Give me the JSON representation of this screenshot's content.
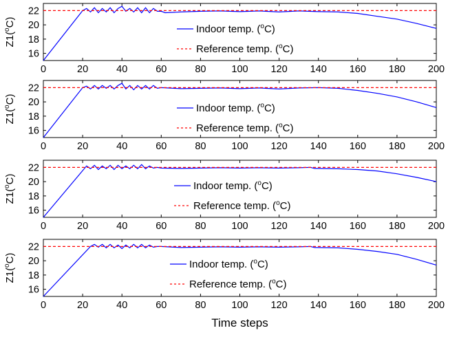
{
  "colors": {
    "indoor": "#0000ff",
    "reference": "#ff0000",
    "axis": "#000000"
  },
  "chart_data": [
    {
      "type": "line",
      "ylabel_base": "Z1(",
      "ylabel_sup": "o",
      "ylabel_unit": "C)",
      "xlim": [
        0,
        200
      ],
      "ylim": [
        15,
        23
      ],
      "x_ticks": [
        0,
        20,
        40,
        60,
        80,
        100,
        120,
        140,
        160,
        180,
        200
      ],
      "y_ticks": [
        16,
        18,
        20,
        22
      ],
      "legend_placement": "center",
      "reference_value": 22,
      "series": [
        {
          "name": "Indoor temp. (oC)",
          "name_base": "Indoor temp. (",
          "name_sup": "o",
          "name_unit": "C)",
          "style": "solid",
          "x": [
            0,
            20,
            22,
            24,
            26,
            28,
            30,
            32,
            34,
            36,
            38,
            40,
            42,
            44,
            46,
            48,
            50,
            52,
            54,
            56,
            58,
            60,
            62,
            70,
            80,
            90,
            100,
            110,
            120,
            130,
            135,
            140,
            150,
            160,
            170,
            180,
            190,
            200
          ],
          "y": [
            15.0,
            22.0,
            22.3,
            21.8,
            22.4,
            21.7,
            22.3,
            21.8,
            22.4,
            21.7,
            22.3,
            22.6,
            21.9,
            22.3,
            21.8,
            22.4,
            21.7,
            22.4,
            21.7,
            22.3,
            21.9,
            21.9,
            21.7,
            21.8,
            21.9,
            21.95,
            21.85,
            21.95,
            21.8,
            21.95,
            21.9,
            21.85,
            21.8,
            21.6,
            21.2,
            20.8,
            20.2,
            19.5
          ]
        },
        {
          "name": "Reference temp. (oC)",
          "name_base": "Reference temp. (",
          "name_sup": "o",
          "name_unit": "C)",
          "style": "dashed",
          "x": [
            0,
            200
          ],
          "y": [
            22,
            22
          ]
        }
      ]
    },
    {
      "type": "line",
      "ylabel_base": "Z1(",
      "ylabel_sup": "o",
      "ylabel_unit": "C)",
      "xlim": [
        0,
        200
      ],
      "ylim": [
        15,
        23
      ],
      "x_ticks": [
        0,
        20,
        40,
        60,
        80,
        100,
        120,
        140,
        160,
        180,
        200
      ],
      "y_ticks": [
        16,
        18,
        20,
        22
      ],
      "legend_placement": "center",
      "reference_value": 22,
      "series": [
        {
          "name": "Indoor temp. (oC)",
          "name_base": "Indoor temp. (",
          "name_sup": "o",
          "name_unit": "C)",
          "style": "solid",
          "x": [
            0,
            20,
            22,
            24,
            26,
            28,
            30,
            32,
            34,
            36,
            38,
            40,
            42,
            44,
            46,
            48,
            50,
            52,
            54,
            56,
            58,
            60,
            70,
            80,
            90,
            100,
            110,
            120,
            130,
            140,
            150,
            160,
            170,
            180,
            190,
            200
          ],
          "y": [
            15.0,
            22.0,
            22.2,
            21.8,
            22.3,
            21.8,
            22.3,
            21.9,
            22.3,
            21.8,
            22.3,
            22.6,
            21.8,
            22.3,
            21.7,
            22.3,
            21.8,
            22.3,
            21.8,
            22.3,
            21.9,
            22.0,
            21.85,
            21.9,
            21.95,
            21.85,
            21.95,
            21.8,
            21.95,
            22.0,
            21.9,
            21.6,
            21.2,
            20.7,
            20.0,
            19.2
          ]
        },
        {
          "name": "Reference temp. (oC)",
          "name_base": "Reference temp. (",
          "name_sup": "o",
          "name_unit": "C)",
          "style": "dashed",
          "x": [
            0,
            200
          ],
          "y": [
            22,
            22
          ]
        }
      ]
    },
    {
      "type": "line",
      "ylabel_base": "Z1(",
      "ylabel_sup": "o",
      "ylabel_unit": "C)",
      "xlim": [
        0,
        200
      ],
      "ylim": [
        15,
        23
      ],
      "x_ticks": [
        0,
        20,
        40,
        60,
        80,
        100,
        120,
        140,
        160,
        180,
        200
      ],
      "y_ticks": [
        16,
        18,
        20,
        22
      ],
      "legend_placement": "center",
      "reference_value": 22,
      "series": [
        {
          "name": "Indoor temp. (oC)",
          "name_base": "Indoor temp. (",
          "name_sup": "o",
          "name_unit": "C)",
          "style": "solid",
          "x": [
            0,
            22,
            24,
            26,
            28,
            30,
            32,
            34,
            36,
            38,
            40,
            42,
            44,
            46,
            48,
            50,
            52,
            54,
            56,
            58,
            60,
            70,
            80,
            90,
            100,
            110,
            120,
            130,
            136,
            138,
            150,
            160,
            170,
            180,
            190,
            200
          ],
          "y": [
            15.0,
            22.2,
            21.8,
            22.3,
            21.7,
            22.2,
            21.8,
            22.3,
            21.7,
            22.3,
            21.8,
            22.2,
            21.8,
            22.3,
            21.8,
            22.4,
            21.8,
            22.2,
            21.9,
            22.0,
            21.9,
            21.85,
            21.9,
            21.95,
            21.9,
            21.95,
            21.9,
            21.95,
            22.0,
            21.85,
            21.8,
            21.7,
            21.5,
            21.1,
            20.6,
            20.0
          ]
        },
        {
          "name": "Reference temp. (oC)",
          "name_base": "Reference temp. (",
          "name_sup": "o",
          "name_unit": "C)",
          "style": "dashed",
          "x": [
            0,
            200
          ],
          "y": [
            22,
            22
          ]
        }
      ]
    },
    {
      "type": "line",
      "ylabel_base": "Z1(",
      "ylabel_sup": "o",
      "ylabel_unit": "C)",
      "xlabel": "Time steps",
      "xlim": [
        0,
        200
      ],
      "ylim": [
        15,
        23
      ],
      "x_ticks": [
        0,
        20,
        40,
        60,
        80,
        100,
        120,
        140,
        160,
        180,
        200
      ],
      "y_ticks": [
        16,
        18,
        20,
        22
      ],
      "legend_placement": "center",
      "reference_value": 22,
      "series": [
        {
          "name": "Indoor temp. (oC)",
          "name_base": "Indoor temp. (",
          "name_sup": "o",
          "name_unit": "C)",
          "style": "solid",
          "x": [
            0,
            24,
            26,
            28,
            30,
            32,
            34,
            36,
            38,
            40,
            42,
            44,
            46,
            48,
            50,
            52,
            54,
            56,
            58,
            60,
            70,
            80,
            90,
            100,
            110,
            120,
            130,
            136,
            138,
            150,
            160,
            170,
            180,
            190,
            200
          ],
          "y": [
            15.0,
            22.0,
            22.3,
            21.9,
            22.3,
            21.8,
            22.3,
            21.8,
            22.2,
            21.7,
            22.2,
            21.8,
            22.3,
            21.8,
            22.3,
            21.8,
            22.2,
            21.9,
            22.0,
            22.0,
            21.85,
            21.9,
            21.95,
            21.9,
            21.95,
            21.9,
            21.95,
            22.0,
            21.85,
            21.8,
            21.6,
            21.3,
            20.9,
            20.2,
            19.4
          ]
        },
        {
          "name": "Reference temp. (oC)",
          "name_base": "Reference temp. (",
          "name_sup": "o",
          "name_unit": "C)",
          "style": "dashed",
          "x": [
            0,
            200
          ],
          "y": [
            22,
            22
          ]
        }
      ]
    }
  ]
}
